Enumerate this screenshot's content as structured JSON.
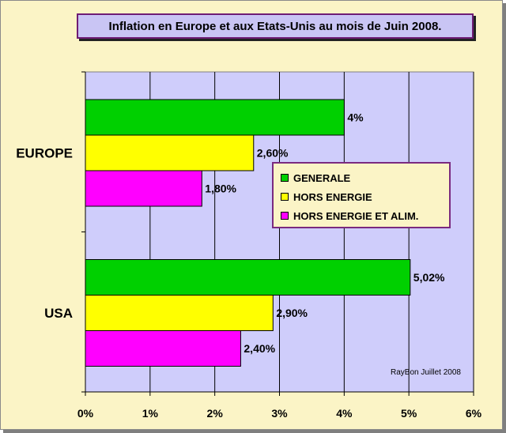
{
  "chart_data": {
    "type": "bar",
    "orientation": "horizontal",
    "title": "Inflation en Europe et aux Etats-Unis au mois de Juin 2008.",
    "categories": [
      "EUROPE",
      "USA"
    ],
    "series": [
      {
        "name": "GENERALE",
        "color": "#00d000",
        "values": [
          4,
          5.02
        ],
        "labels": [
          "4%",
          "5,02%"
        ]
      },
      {
        "name": "HORS ENERGIE",
        "color": "#ffff00",
        "values": [
          2.6,
          2.9
        ],
        "labels": [
          "2,60%",
          "2,90%"
        ]
      },
      {
        "name": "HORS ENERGIE ET ALIM.",
        "color": "#ff00ff",
        "values": [
          1.8,
          2.4
        ],
        "labels": [
          "1,80%",
          "2,40%"
        ]
      }
    ],
    "xlim": [
      0,
      6
    ],
    "xticks": [
      0,
      1,
      2,
      3,
      4,
      5,
      6
    ],
    "xtick_labels": [
      "0%",
      "1%",
      "2%",
      "3%",
      "4%",
      "5%",
      "6%"
    ],
    "grid": true,
    "legend_position": "right-middle",
    "plot_background": "#cfcdfb",
    "page_background": "#fbf4c6"
  },
  "credit": "RayBon Juillet 2008"
}
